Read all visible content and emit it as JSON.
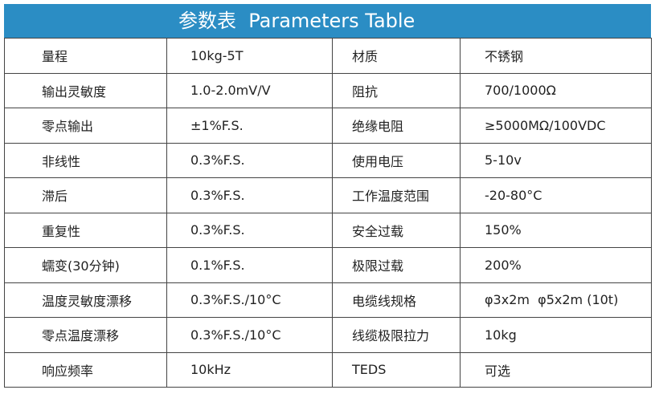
{
  "header": {
    "title": "参数表  Parameters Table"
  },
  "table": {
    "rows": [
      [
        "量程",
        "10kg-5T",
        "材质",
        "不锈钢"
      ],
      [
        "输出灵敏度",
        "1.0-2.0mV/V",
        "阻抗",
        "700/1000Ω"
      ],
      [
        "零点输出",
        "±1%F.S.",
        "绝缘电阻",
        "≥5000MΩ/100VDC"
      ],
      [
        "非线性",
        "0.3%F.S.",
        "使用电压",
        "5-10v"
      ],
      [
        "滞后",
        "0.3%F.S.",
        "工作温度范围",
        "-20-80°C"
      ],
      [
        "重复性",
        "0.3%F.S.",
        "安全过载",
        "150%"
      ],
      [
        "蠕变(30分钟)",
        "0.1%F.S.",
        "极限过载",
        "200%"
      ],
      [
        "温度灵敏度漂移",
        "0.3%F.S./10°C",
        "电缆线规格",
        "φ3x2m  φ5x2m (10t)"
      ],
      [
        "零点温度漂移",
        "0.3%F.S./10°C",
        "线缆极限拉力",
        "10kg"
      ],
      [
        "响应频率",
        "10kHz",
        "TEDS",
        "可选"
      ]
    ]
  }
}
